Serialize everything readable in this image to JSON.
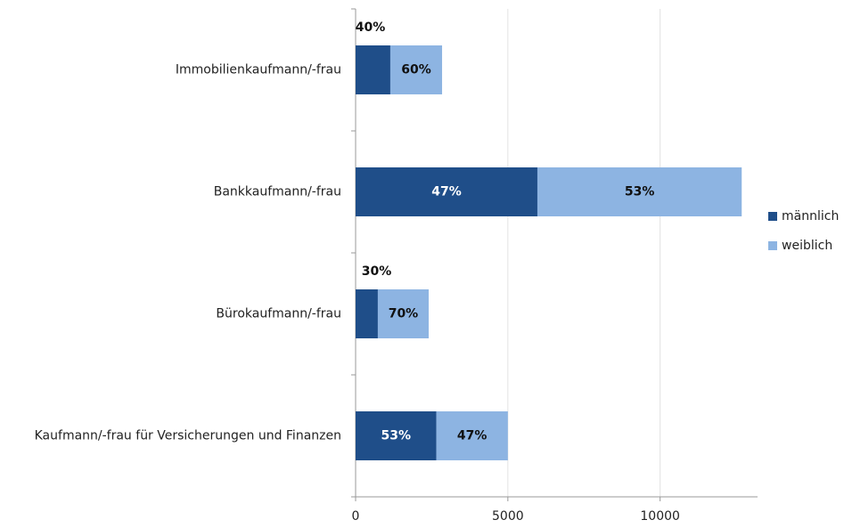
{
  "chart_data": {
    "type": "stacked_barh",
    "categories": [
      "Immobilienkaufmann/-frau",
      "Bankkaufmann/-frau",
      "Bürokaufmann/-frau",
      "Kaufmann/-frau für Versicherungen und Finanzen"
    ],
    "series": [
      {
        "name": "männlich",
        "color": "#1f4e89",
        "values": [
          1140,
          5970,
          730,
          2650
        ],
        "share_labels": [
          "40%",
          "47%",
          "30%",
          "53%"
        ]
      },
      {
        "name": "weiblich",
        "color": "#8db4e2",
        "values": [
          1700,
          6710,
          1670,
          2350
        ],
        "share_labels": [
          "60%",
          "53%",
          "70%",
          "47%"
        ]
      }
    ],
    "xlim": [
      0,
      13200
    ],
    "xticks": [
      0,
      5000,
      10000
    ],
    "grid": true,
    "legend": "right"
  }
}
